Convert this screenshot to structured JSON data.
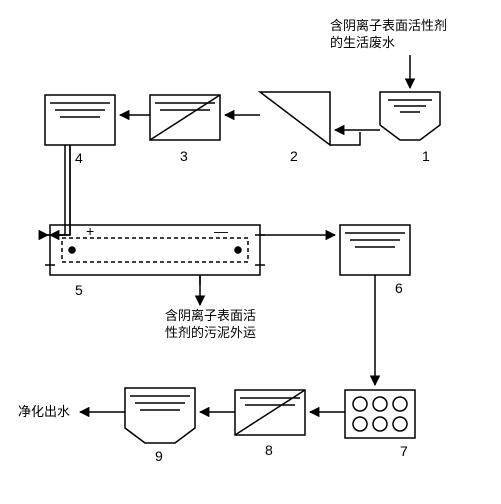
{
  "diagram": {
    "type": "flowchart",
    "stroke": "#000000",
    "background": "#ffffff",
    "font_size_label": 13,
    "font_size_num": 14,
    "labels": {
      "input": "含阴离子表面活性剂\n的生活废水",
      "sludge": "含阴离子表面活\n性剂的污泥外运",
      "output": "净化出水"
    },
    "nodes": {
      "1": {
        "num": "1"
      },
      "2": {
        "num": "2"
      },
      "3": {
        "num": "3"
      },
      "4": {
        "num": "4"
      },
      "5": {
        "num": "5"
      },
      "6": {
        "num": "6"
      },
      "7": {
        "num": "7"
      },
      "8": {
        "num": "8"
      },
      "9": {
        "num": "9"
      }
    },
    "electrode": {
      "plus": "+",
      "minus": "—"
    }
  }
}
